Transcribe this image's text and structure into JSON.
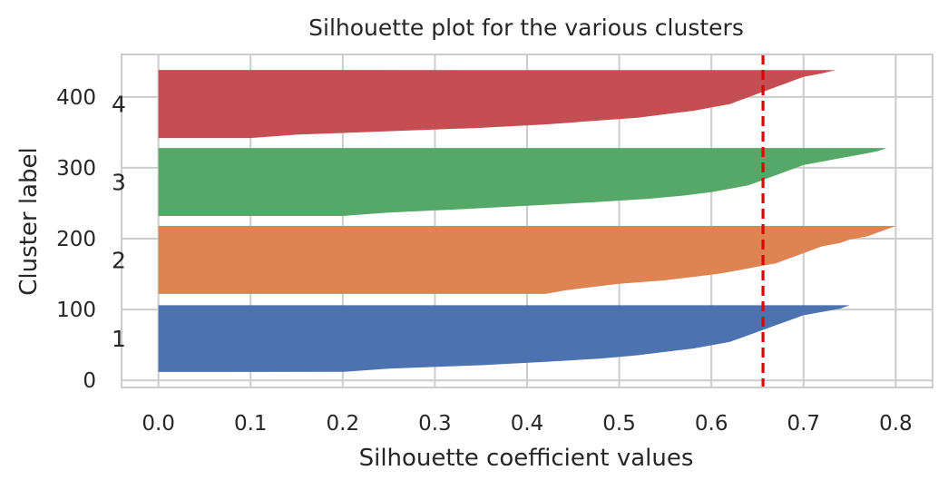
{
  "chart_data": {
    "type": "area",
    "title": "Silhouette plot for the various clusters",
    "xlabel": "Silhouette coefficient values",
    "ylabel": "Cluster label",
    "xlim": [
      -0.04,
      0.84
    ],
    "ylim": [
      -10,
      460
    ],
    "xticks": [
      "0.0",
      "0.1",
      "0.2",
      "0.3",
      "0.4",
      "0.5",
      "0.6",
      "0.7",
      "0.8"
    ],
    "yticks": [
      "0",
      "100",
      "200",
      "300",
      "400"
    ],
    "grid": true,
    "average_silhouette_score": 0.656,
    "average_line_color": "#e00000",
    "clusters": [
      {
        "label": "1",
        "color": "#4c72b0",
        "y_range": [
          12,
          106
        ],
        "profile": [
          [
            0,
            0.75
          ],
          [
            0.05,
            0.74
          ],
          [
            0.1,
            0.72
          ],
          [
            0.15,
            0.7
          ],
          [
            0.2,
            0.69
          ],
          [
            0.25,
            0.68
          ],
          [
            0.3,
            0.67
          ],
          [
            0.35,
            0.66
          ],
          [
            0.4,
            0.65
          ],
          [
            0.45,
            0.64
          ],
          [
            0.5,
            0.63
          ],
          [
            0.55,
            0.62
          ],
          [
            0.6,
            0.6
          ],
          [
            0.65,
            0.58
          ],
          [
            0.7,
            0.55
          ],
          [
            0.75,
            0.52
          ],
          [
            0.8,
            0.48
          ],
          [
            0.85,
            0.42
          ],
          [
            0.9,
            0.35
          ],
          [
            0.95,
            0.25
          ],
          [
            1.0,
            0.2
          ]
        ]
      },
      {
        "label": "2",
        "color": "#dd8452",
        "y_range": [
          122,
          218
        ],
        "profile": [
          [
            0,
            0.8
          ],
          [
            0.05,
            0.79
          ],
          [
            0.1,
            0.78
          ],
          [
            0.15,
            0.77
          ],
          [
            0.2,
            0.75
          ],
          [
            0.25,
            0.74
          ],
          [
            0.3,
            0.72
          ],
          [
            0.35,
            0.71
          ],
          [
            0.4,
            0.7
          ],
          [
            0.45,
            0.69
          ],
          [
            0.5,
            0.68
          ],
          [
            0.55,
            0.67
          ],
          [
            0.6,
            0.65
          ],
          [
            0.65,
            0.63
          ],
          [
            0.7,
            0.61
          ],
          [
            0.75,
            0.58
          ],
          [
            0.8,
            0.55
          ],
          [
            0.85,
            0.5
          ],
          [
            0.9,
            0.47
          ],
          [
            0.95,
            0.44
          ],
          [
            1.0,
            0.42
          ]
        ]
      },
      {
        "label": "3",
        "color": "#55a868",
        "y_range": [
          232,
          328
        ],
        "profile": [
          [
            0,
            0.79
          ],
          [
            0.05,
            0.78
          ],
          [
            0.1,
            0.76
          ],
          [
            0.15,
            0.74
          ],
          [
            0.2,
            0.72
          ],
          [
            0.25,
            0.7
          ],
          [
            0.3,
            0.69
          ],
          [
            0.35,
            0.68
          ],
          [
            0.4,
            0.67
          ],
          [
            0.45,
            0.66
          ],
          [
            0.5,
            0.65
          ],
          [
            0.55,
            0.64
          ],
          [
            0.6,
            0.62
          ],
          [
            0.65,
            0.6
          ],
          [
            0.7,
            0.57
          ],
          [
            0.75,
            0.53
          ],
          [
            0.8,
            0.47
          ],
          [
            0.85,
            0.4
          ],
          [
            0.9,
            0.33
          ],
          [
            0.95,
            0.25
          ],
          [
            1.0,
            0.2
          ]
        ]
      },
      {
        "label": "4",
        "color": "#c44e52",
        "y_range": [
          342,
          438
        ],
        "profile": [
          [
            0,
            0.735
          ],
          [
            0.05,
            0.72
          ],
          [
            0.1,
            0.7
          ],
          [
            0.15,
            0.69
          ],
          [
            0.2,
            0.68
          ],
          [
            0.25,
            0.67
          ],
          [
            0.3,
            0.66
          ],
          [
            0.35,
            0.65
          ],
          [
            0.4,
            0.64
          ],
          [
            0.45,
            0.63
          ],
          [
            0.5,
            0.62
          ],
          [
            0.55,
            0.6
          ],
          [
            0.6,
            0.58
          ],
          [
            0.65,
            0.55
          ],
          [
            0.7,
            0.52
          ],
          [
            0.75,
            0.47
          ],
          [
            0.8,
            0.42
          ],
          [
            0.85,
            0.35
          ],
          [
            0.9,
            0.25
          ],
          [
            0.95,
            0.15
          ],
          [
            1.0,
            0.1
          ]
        ]
      }
    ]
  }
}
